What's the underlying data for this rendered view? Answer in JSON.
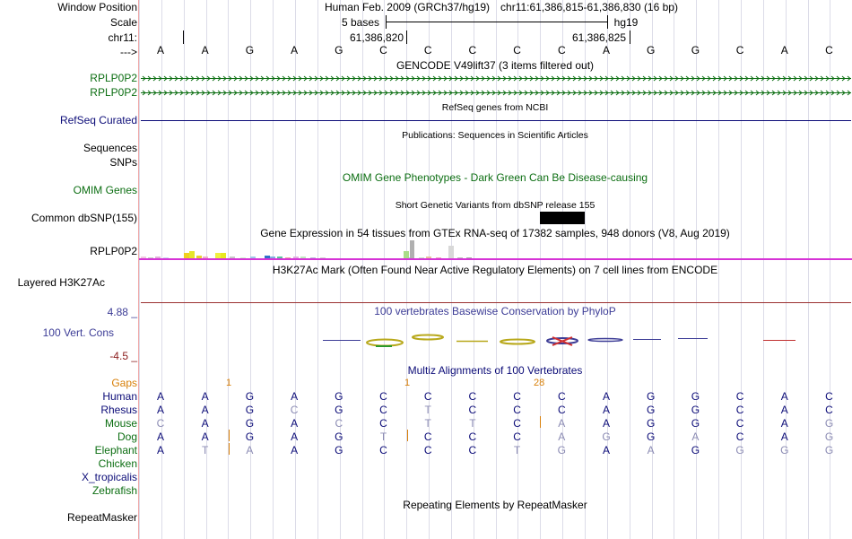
{
  "header": {
    "window_position_label": "Window Position",
    "scale_label": "Scale",
    "chrom_label": "chr11:",
    "strand_label": "--->",
    "assembly": "Human Feb. 2009 (GRCh37/hg19)",
    "position": "chr11:61,386,815-61,386,830 (16 bp)",
    "scale_text": "5 bases",
    "scale_db": "hg19",
    "coord_1": "61,386,820",
    "coord_2": "61,386,825"
  },
  "sequence": [
    "A",
    "A",
    "G",
    "A",
    "G",
    "C",
    "C",
    "C",
    "C",
    "C",
    "A",
    "G",
    "G",
    "C",
    "A",
    "C"
  ],
  "gencode": {
    "title": "GENCODE V49lift37 (3 items filtered out)",
    "items": [
      "RPLP0P2",
      "RPLP0P2"
    ]
  },
  "refseq": {
    "label": "RefSeq Curated",
    "title": "RefSeq genes from NCBI"
  },
  "pubs": {
    "label": "Sequences",
    "title": "Publications: Sequences in Scientific Articles"
  },
  "snps_label": "SNPs",
  "omim": {
    "label": "OMIM Genes",
    "title": "OMIM Gene Phenotypes - Dark Green Can Be Disease-causing"
  },
  "dbsnp": {
    "label": "Common dbSNP(155)",
    "title": "Short Genetic Variants from dbSNP release 155"
  },
  "gtex": {
    "label": "RPLP0P2",
    "title": "Gene Expression in 54 tissues from GTEx RNA-seq of 17382 samples, 948 donors (V8, Aug 2019)"
  },
  "h3k27ac": {
    "label": "Layered H3K27Ac",
    "title": "H3K27Ac Mark (Often Found Near Active Regulatory Elements) on 7 cell lines from ENCODE"
  },
  "cons": {
    "label": "100 Vert. Cons",
    "max_label": "4.88 _",
    "min_label": "-4.5 _",
    "title": "100 vertebrates Basewise Conservation by PhyloP"
  },
  "multiz": {
    "title": "Multiz Alignments of 100 Vertebrates",
    "gaps_label": "Gaps",
    "gap_numbers": [
      "1",
      "1",
      "28"
    ],
    "species": [
      {
        "name": "Human",
        "bases": [
          "A",
          "A",
          "G",
          "A",
          "G",
          "C",
          "C",
          "C",
          "C",
          "C",
          "A",
          "G",
          "G",
          "C",
          "A",
          "C"
        ]
      },
      {
        "name": "Rhesus",
        "bases": [
          "A",
          "A",
          "G",
          "C",
          "G",
          "C",
          "T",
          "C",
          "C",
          "C",
          "A",
          "G",
          "G",
          "C",
          "A",
          "C"
        ]
      },
      {
        "name": "Mouse",
        "bases": [
          "C",
          "A",
          "G",
          "A",
          "C",
          "C",
          "T",
          "T",
          "C",
          "A",
          "A",
          "G",
          "G",
          "C",
          "A",
          "G"
        ]
      },
      {
        "name": "Dog",
        "bases": [
          "A",
          "A",
          "G",
          "A",
          "G",
          "T",
          "C",
          "C",
          "C",
          "A",
          "G",
          "G",
          "A",
          "C",
          "A",
          "G"
        ]
      },
      {
        "name": "Elephant",
        "bases": [
          "A",
          "T",
          "A",
          "A",
          "G",
          "C",
          "C",
          "C",
          "T",
          "G",
          "A",
          "A",
          "G",
          "G",
          "G",
          "G"
        ]
      },
      {
        "name": "Chicken",
        "bases": []
      },
      {
        "name": "X_tropicalis",
        "bases": []
      },
      {
        "name": "Zebrafish",
        "bases": []
      }
    ]
  },
  "repeatmasker": {
    "label": "RepeatMasker",
    "title": "Repeating Elements by RepeatMasker"
  },
  "colors": {
    "gencode_green": "#0c6e12",
    "refseq_navy": "#0c0c78",
    "omim_green": "#0c6e12",
    "cons_blue": "#3c3c96",
    "min_red": "#8a1a1a",
    "gaps_orange": "#d8800a",
    "mismatch_gray": "#8c8cb4",
    "match_navy": "#0c0c78",
    "magenta": "#d633d6"
  }
}
